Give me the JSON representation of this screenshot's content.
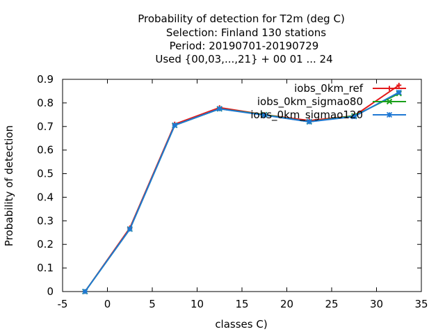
{
  "chart_data": {
    "type": "line",
    "title_lines": [
      "Probability of detection  for T2m (deg C)",
      "Selection: Finland    130 stations",
      "Period: 20190701-20190729",
      "Used {00,03,...,21} + 00 01 ... 24"
    ],
    "xlabel": "classes C)",
    "ylabel": "Probability of detection",
    "xlim": [
      -5,
      35
    ],
    "ylim": [
      0,
      0.9
    ],
    "xticks": [
      -5,
      0,
      5,
      10,
      15,
      20,
      25,
      30,
      35
    ],
    "yticks": [
      0,
      0.1,
      0.2,
      0.3,
      0.4,
      0.5,
      0.6,
      0.7,
      0.8,
      0.9
    ],
    "xtick_labels": [
      "-5",
      "0",
      "5",
      "10",
      "15",
      "20",
      "25",
      "30",
      "35"
    ],
    "ytick_labels": [
      "0",
      "0.1",
      "0.2",
      "0.3",
      "0.4",
      "0.5",
      "0.6",
      "0.7",
      "0.8",
      "0.9"
    ],
    "grid": false,
    "legend_position": "top-right",
    "x": [
      -2.5,
      2.5,
      7.5,
      12.5,
      17.5,
      22.5,
      27.5,
      32.5
    ],
    "series": [
      {
        "name": "iobs_0km_ref",
        "color": "#e31a1c",
        "marker": "plus",
        "values": [
          0,
          0.27,
          0.71,
          0.78,
          0.75,
          0.725,
          0.745,
          0.875
        ]
      },
      {
        "name": "iobs_0km_sigmao80",
        "color": "#1aa01a",
        "marker": "cross",
        "values": [
          0,
          0.265,
          0.705,
          0.775,
          0.75,
          0.72,
          0.745,
          0.84
        ]
      },
      {
        "name": "iobs_0km_sigmao120",
        "color": "#1f78d4",
        "marker": "star",
        "values": [
          0,
          0.265,
          0.705,
          0.775,
          0.748,
          0.72,
          0.742,
          0.845
        ]
      }
    ]
  }
}
